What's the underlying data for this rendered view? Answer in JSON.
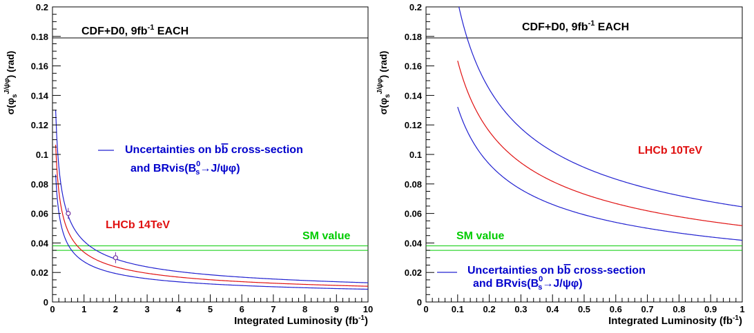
{
  "chart_data": [
    {
      "type": "line",
      "xlabel": "Integrated Luminosity (fb",
      "xlabel_sup": "-1",
      "xlabel_end": ")",
      "ylabel": "σ(φ",
      "ylabel_sub": "s",
      "ylabel_sup": "J/ψφ",
      "ylabel_end": ")  (rad)",
      "xlim": [
        0,
        10
      ],
      "ylim": [
        0,
        0.2
      ],
      "xticks": [
        0,
        1,
        2,
        3,
        4,
        5,
        6,
        7,
        8,
        9,
        10
      ],
      "xtick_labels": [
        "0",
        "1",
        "2",
        "3",
        "4",
        "5",
        "6",
        "7",
        "8",
        "9",
        "10"
      ],
      "yticks": [
        0,
        0.02,
        0.04,
        0.06,
        0.08,
        0.1,
        0.12,
        0.14,
        0.16,
        0.18,
        0.2
      ],
      "ytick_labels": [
        "0",
        "0.02",
        "0.04",
        "0.06",
        "0.08",
        "0.1",
        "0.12",
        "0.14",
        "0.16",
        "0.18",
        "0.2"
      ],
      "x_curve_start": 0.1,
      "curves": [
        {
          "color": "#2020d0",
          "k": 0.0412,
          "role": "upper"
        },
        {
          "color": "#e01010",
          "k": 0.0337,
          "role": "central"
        },
        {
          "color": "#2020d0",
          "k": 0.0273,
          "role": "lower"
        }
      ],
      "points": [
        {
          "x": 0.5,
          "y": 0.06
        },
        {
          "x": 2,
          "y": 0.03
        }
      ],
      "hlines": [
        {
          "y": 0.179,
          "color": "#000000"
        },
        {
          "y": 0.038,
          "color": "#00cc00"
        },
        {
          "y": 0.035,
          "color": "#00cc00"
        }
      ],
      "annotations": {
        "cdf": {
          "text": "CDF+D0, 9fb",
          "sup": "-1",
          "tail": " EACH",
          "color": "#000000"
        },
        "lhcb": {
          "text": "LHCb 14TeV",
          "color": "#e01010"
        },
        "sm": {
          "text": "SM value",
          "color": "#00cc00"
        },
        "legend_line1": {
          "text": "Uncertainties on b",
          "bbar": "b",
          "tail": "  cross-section",
          "color": "#0000cc"
        },
        "legend_line2": {
          "text": "and BRvis(B",
          "sub": "s",
          "sup": "0",
          "arrow": "→J/ψφ)",
          "color": "#0000cc"
        }
      }
    },
    {
      "type": "line",
      "xlabel": "Integrated Luminosity (fb",
      "xlabel_sup": "-1",
      "xlabel_end": ")",
      "ylabel": "σ(φ",
      "ylabel_sub": "s",
      "ylabel_sup": "J/ψφ",
      "ylabel_end": ")  (rad)",
      "xlim": [
        0,
        1
      ],
      "ylim": [
        0,
        0.2
      ],
      "xticks": [
        0,
        0.1,
        0.2,
        0.3,
        0.4,
        0.5,
        0.6,
        0.7,
        0.8,
        0.9,
        1
      ],
      "xtick_labels": [
        "0",
        "0.1",
        "0.2",
        "0.3",
        "0.4",
        "0.5",
        "0.6",
        "0.7",
        "0.8",
        "0.9",
        "1"
      ],
      "yticks": [
        0,
        0.02,
        0.04,
        0.06,
        0.08,
        0.1,
        0.12,
        0.14,
        0.16,
        0.18,
        0.2
      ],
      "ytick_labels": [
        "0",
        "0.02",
        "0.04",
        "0.06",
        "0.08",
        "0.1",
        "0.12",
        "0.14",
        "0.16",
        "0.18",
        "0.2"
      ],
      "x_curve_start": 0.1,
      "curves": [
        {
          "color": "#2020d0",
          "k": 0.0645,
          "role": "upper"
        },
        {
          "color": "#e01010",
          "k": 0.0517,
          "role": "central"
        },
        {
          "color": "#2020d0",
          "k": 0.0418,
          "role": "lower"
        }
      ],
      "points": [],
      "hlines": [
        {
          "y": 0.179,
          "color": "#000000"
        },
        {
          "y": 0.038,
          "color": "#00cc00"
        },
        {
          "y": 0.035,
          "color": "#00cc00"
        }
      ],
      "annotations": {
        "cdf": {
          "text": "CDF+D0, 9fb",
          "sup": "-1",
          "tail": " EACH",
          "color": "#000000"
        },
        "lhcb": {
          "text": "LHCb 10TeV",
          "color": "#e01010"
        },
        "sm": {
          "text": "SM value",
          "color": "#00cc00"
        },
        "legend_line1": {
          "text": "Uncertainties on b",
          "bbar": "b",
          "tail": "  cross-section",
          "color": "#0000cc"
        },
        "legend_line2": {
          "text": "and BRvis(B",
          "sub": "s",
          "sup": "0",
          "arrow": "→J/ψφ)",
          "color": "#0000cc"
        }
      }
    }
  ]
}
